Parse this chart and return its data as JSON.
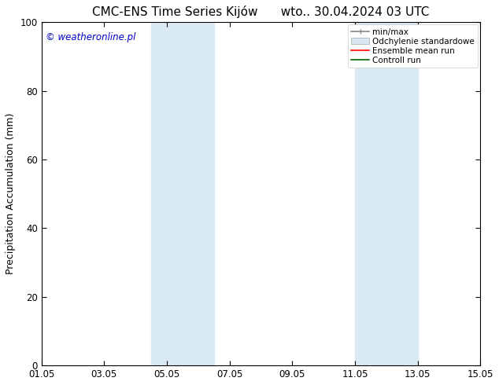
{
  "title_left": "CMC-ENS Time Series Kijów",
  "title_right": "wto.. 30.04.2024 03 UTC",
  "ylabel": "Precipitation Accumulation (mm)",
  "watermark": "© weatheronline.pl",
  "watermark_color": "#0000cc",
  "ylim": [
    0,
    100
  ],
  "xtick_labels": [
    "01.05",
    "03.05",
    "05.05",
    "07.05",
    "09.05",
    "11.05",
    "13.05",
    "15.05"
  ],
  "xtick_positions": [
    0,
    2,
    4,
    6,
    8,
    10,
    12,
    14
  ],
  "ytick_positions": [
    0,
    20,
    40,
    60,
    80,
    100
  ],
  "shaded_bands": [
    {
      "x_start": 3.5,
      "x_end": 5.5
    },
    {
      "x_start": 10.0,
      "x_end": 12.0
    }
  ],
  "shade_color": "#daeaf5",
  "legend_entries": [
    {
      "label": "min/max",
      "color": "#aaaaaa",
      "lw": 1.2
    },
    {
      "label": "Odchylenie standardowe",
      "color": "#ccddee",
      "lw": 6
    },
    {
      "label": "Ensemble mean run",
      "color": "#ff0000",
      "lw": 1.2
    },
    {
      "label": "Controll run",
      "color": "#006600",
      "lw": 1.2
    }
  ],
  "bg_color": "#ffffff",
  "plot_bg_color": "#ffffff",
  "tick_fontsize": 8.5,
  "label_fontsize": 9,
  "title_fontsize": 11
}
